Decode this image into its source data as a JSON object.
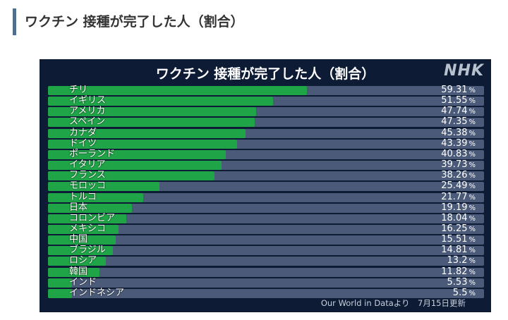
{
  "page": {
    "heading": "ワクチン 接種が完了した人（割合）"
  },
  "chart": {
    "brand": "NHK",
    "source": "Our World in Dataより　7月15日更新",
    "colors": {
      "panel": "#0d1b35",
      "fill": "#1fa447",
      "track": "#4a5a78"
    }
  },
  "chart_data": {
    "type": "bar",
    "orientation": "horizontal",
    "title": "ワクチン 接種が完了した人（割合）",
    "unit": "%",
    "xlim": [
      0,
      100
    ],
    "grid": false,
    "categories": [
      "チリ",
      "イギリス",
      "アメリカ",
      "スペイン",
      "カナダ",
      "ドイツ",
      "ポーランド",
      "イタリア",
      "フランス",
      "モロッコ",
      "トルコ",
      "日本",
      "コロンビア",
      "メキシコ",
      "中国",
      "ブラジル",
      "ロシア",
      "韓国",
      "インド",
      "インドネシア"
    ],
    "values": [
      59.31,
      51.55,
      47.74,
      47.35,
      45.38,
      43.39,
      40.83,
      39.73,
      38.26,
      25.49,
      21.77,
      19.19,
      18.04,
      16.25,
      15.51,
      14.81,
      13.2,
      11.82,
      5.53,
      5.5
    ],
    "value_labels": [
      "59.31",
      "51.55",
      "47.74",
      "47.35",
      "45.38",
      "43.39",
      "40.83",
      "39.73",
      "38.26",
      "25.49",
      "21.77",
      "19.19",
      "18.04",
      "16.25",
      "15.51",
      "14.81",
      "13.2",
      "11.82",
      "5.53",
      "5.5"
    ]
  }
}
